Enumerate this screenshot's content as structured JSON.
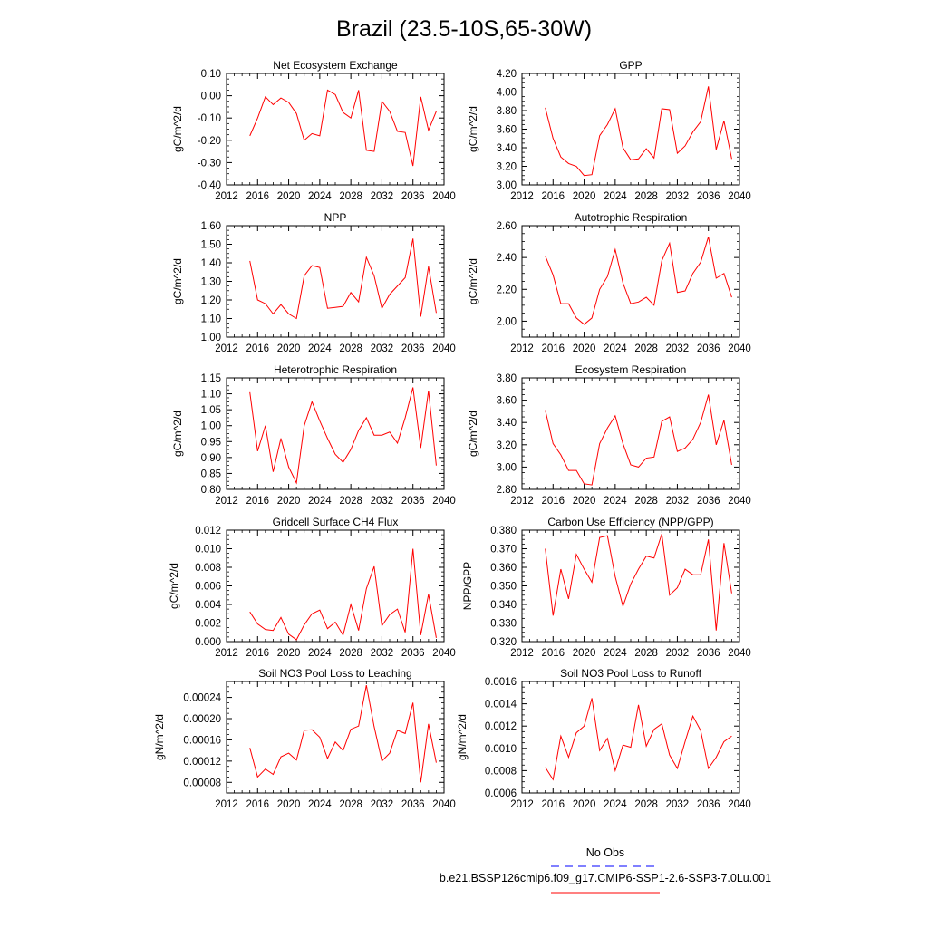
{
  "title": "Brazil (23.5-10S,65-30W)",
  "colors": {
    "model": "#ff0000",
    "obs": "#0000ff",
    "axis": "#000000"
  },
  "legend": {
    "obs_label": "No Obs",
    "model_label": "b.e21.BSSP126cmip6.f09_g17.CMIP6-SSP1-2.6-SSP3-7.0Lu.001"
  },
  "chart_data": [
    {
      "type": "line",
      "title": "Net Ecosystem Exchange",
      "ylabel": "gC/m^2/d",
      "xlim": [
        2012,
        2040
      ],
      "ylim": [
        -0.4,
        0.1
      ],
      "xticks": [
        2012,
        2016,
        2020,
        2024,
        2028,
        2032,
        2036,
        2040
      ],
      "xtick_labels": [
        "2012",
        "2016",
        "2020",
        "2024",
        "2028",
        "2032",
        "2036",
        "2040"
      ],
      "yticks": [
        -0.4,
        -0.3,
        -0.2,
        -0.1,
        0.0,
        0.1
      ],
      "ytick_labels": [
        "-0.40",
        "-0.30",
        "-0.20",
        "-0.10",
        "0.00",
        "0.10"
      ],
      "x": [
        2015,
        2016,
        2017,
        2018,
        2019,
        2020,
        2021,
        2022,
        2023,
        2024,
        2025,
        2026,
        2027,
        2028,
        2029,
        2030,
        2031,
        2032,
        2033,
        2034,
        2035,
        2036,
        2037,
        2038,
        2039
      ],
      "values": [
        -0.18,
        -0.1,
        -0.005,
        -0.04,
        -0.01,
        -0.03,
        -0.08,
        -0.2,
        -0.17,
        -0.18,
        0.025,
        0.005,
        -0.075,
        -0.1,
        0.025,
        -0.245,
        -0.25,
        -0.025,
        -0.07,
        -0.16,
        -0.165,
        -0.315,
        -0.005,
        -0.155,
        -0.07
      ]
    },
    {
      "type": "line",
      "title": "GPP",
      "ylabel": "gC/m^2/d",
      "xlim": [
        2012,
        2040
      ],
      "ylim": [
        3.0,
        4.2
      ],
      "xticks": [
        2012,
        2016,
        2020,
        2024,
        2028,
        2032,
        2036,
        2040
      ],
      "xtick_labels": [
        "2012",
        "2016",
        "2020",
        "2024",
        "2028",
        "2032",
        "2036",
        "2040"
      ],
      "yticks": [
        3.0,
        3.2,
        3.4,
        3.6,
        3.8,
        4.0,
        4.2
      ],
      "ytick_labels": [
        "3.00",
        "3.20",
        "3.40",
        "3.60",
        "3.80",
        "4.00",
        "4.20"
      ],
      "x": [
        2015,
        2016,
        2017,
        2018,
        2019,
        2020,
        2021,
        2022,
        2023,
        2024,
        2025,
        2026,
        2027,
        2028,
        2029,
        2030,
        2031,
        2032,
        2033,
        2034,
        2035,
        2036,
        2037,
        2038,
        2039
      ],
      "values": [
        3.83,
        3.5,
        3.3,
        3.23,
        3.2,
        3.1,
        3.11,
        3.53,
        3.65,
        3.82,
        3.4,
        3.27,
        3.28,
        3.39,
        3.29,
        3.82,
        3.81,
        3.34,
        3.42,
        3.57,
        3.68,
        4.06,
        3.38,
        3.69,
        3.28
      ]
    },
    {
      "type": "line",
      "title": "NPP",
      "ylabel": "gC/m^2/d",
      "xlim": [
        2012,
        2040
      ],
      "ylim": [
        1.0,
        1.6
      ],
      "xticks": [
        2012,
        2016,
        2020,
        2024,
        2028,
        2032,
        2036,
        2040
      ],
      "xtick_labels": [
        "2012",
        "2016",
        "2020",
        "2024",
        "2028",
        "2032",
        "2036",
        "2040"
      ],
      "yticks": [
        1.0,
        1.1,
        1.2,
        1.3,
        1.4,
        1.5,
        1.6
      ],
      "ytick_labels": [
        "1.00",
        "1.10",
        "1.20",
        "1.30",
        "1.40",
        "1.50",
        "1.60"
      ],
      "x": [
        2015,
        2016,
        2017,
        2018,
        2019,
        2020,
        2021,
        2022,
        2023,
        2024,
        2025,
        2026,
        2027,
        2028,
        2029,
        2030,
        2031,
        2032,
        2033,
        2034,
        2035,
        2036,
        2037,
        2038,
        2039
      ],
      "values": [
        1.41,
        1.2,
        1.18,
        1.125,
        1.175,
        1.125,
        1.1,
        1.33,
        1.385,
        1.375,
        1.155,
        1.16,
        1.165,
        1.24,
        1.19,
        1.43,
        1.33,
        1.155,
        1.23,
        1.275,
        1.32,
        1.53,
        1.11,
        1.38,
        1.13
      ]
    },
    {
      "type": "line",
      "title": "Autotrophic Respiration",
      "ylabel": "gC/m^2/d",
      "xlim": [
        2012,
        2040
      ],
      "ylim": [
        1.9,
        2.6
      ],
      "xticks": [
        2012,
        2016,
        2020,
        2024,
        2028,
        2032,
        2036,
        2040
      ],
      "xtick_labels": [
        "2012",
        "2016",
        "2020",
        "2024",
        "2028",
        "2032",
        "2036",
        "2040"
      ],
      "yticks": [
        2.0,
        2.2,
        2.4,
        2.6
      ],
      "ytick_labels": [
        "2.00",
        "2.20",
        "2.40",
        "2.60"
      ],
      "x": [
        2015,
        2016,
        2017,
        2018,
        2019,
        2020,
        2021,
        2022,
        2023,
        2024,
        2025,
        2026,
        2027,
        2028,
        2029,
        2030,
        2031,
        2032,
        2033,
        2034,
        2035,
        2036,
        2037,
        2038,
        2039
      ],
      "values": [
        2.41,
        2.29,
        2.11,
        2.11,
        2.02,
        1.98,
        2.02,
        2.2,
        2.28,
        2.45,
        2.24,
        2.11,
        2.12,
        2.15,
        2.1,
        2.38,
        2.49,
        2.18,
        2.19,
        2.3,
        2.37,
        2.53,
        2.27,
        2.3,
        2.15
      ]
    },
    {
      "type": "line",
      "title": "Heterotrophic Respiration",
      "ylabel": "gC/m^2/d",
      "xlim": [
        2012,
        2040
      ],
      "ylim": [
        0.8,
        1.15
      ],
      "xticks": [
        2012,
        2016,
        2020,
        2024,
        2028,
        2032,
        2036,
        2040
      ],
      "xtick_labels": [
        "2012",
        "2016",
        "2020",
        "2024",
        "2028",
        "2032",
        "2036",
        "2040"
      ],
      "yticks": [
        0.8,
        0.85,
        0.9,
        0.95,
        1.0,
        1.05,
        1.1,
        1.15
      ],
      "ytick_labels": [
        "0.80",
        "0.85",
        "0.90",
        "0.95",
        "1.00",
        "1.05",
        "1.10",
        "1.15"
      ],
      "x": [
        2015,
        2016,
        2017,
        2018,
        2019,
        2020,
        2021,
        2022,
        2023,
        2024,
        2025,
        2026,
        2027,
        2028,
        2029,
        2030,
        2031,
        2032,
        2033,
        2034,
        2035,
        2036,
        2037,
        2038,
        2039
      ],
      "values": [
        1.105,
        0.92,
        1.0,
        0.855,
        0.96,
        0.87,
        0.82,
        1.0,
        1.075,
        1.015,
        0.96,
        0.91,
        0.885,
        0.925,
        0.985,
        1.025,
        0.97,
        0.97,
        0.98,
        0.945,
        1.025,
        1.12,
        0.93,
        1.11,
        0.875
      ]
    },
    {
      "type": "line",
      "title": "Ecosystem Respiration",
      "ylabel": "gC/m^2/d",
      "xlim": [
        2012,
        2040
      ],
      "ylim": [
        2.8,
        3.8
      ],
      "xticks": [
        2012,
        2016,
        2020,
        2024,
        2028,
        2032,
        2036,
        2040
      ],
      "xtick_labels": [
        "2012",
        "2016",
        "2020",
        "2024",
        "2028",
        "2032",
        "2036",
        "2040"
      ],
      "yticks": [
        2.8,
        3.0,
        3.2,
        3.4,
        3.6,
        3.8
      ],
      "ytick_labels": [
        "2.80",
        "3.00",
        "3.20",
        "3.40",
        "3.60",
        "3.80"
      ],
      "x": [
        2015,
        2016,
        2017,
        2018,
        2019,
        2020,
        2021,
        2022,
        2023,
        2024,
        2025,
        2026,
        2027,
        2028,
        2029,
        2030,
        2031,
        2032,
        2033,
        2034,
        2035,
        2036,
        2037,
        2038,
        2039
      ],
      "values": [
        3.51,
        3.21,
        3.11,
        2.97,
        2.97,
        2.85,
        2.84,
        3.21,
        3.35,
        3.46,
        3.21,
        3.02,
        3.0,
        3.08,
        3.09,
        3.41,
        3.45,
        3.14,
        3.17,
        3.25,
        3.4,
        3.65,
        3.2,
        3.42,
        3.02
      ]
    },
    {
      "type": "line",
      "title": "Gridcell Surface CH4 Flux",
      "ylabel": "gC/m^2/d",
      "xlim": [
        2012,
        2040
      ],
      "ylim": [
        0.0,
        0.012
      ],
      "xticks": [
        2012,
        2016,
        2020,
        2024,
        2028,
        2032,
        2036,
        2040
      ],
      "xtick_labels": [
        "2012",
        "2016",
        "2020",
        "2024",
        "2028",
        "2032",
        "2036",
        "2040"
      ],
      "yticks": [
        0.0,
        0.002,
        0.004,
        0.006,
        0.008,
        0.01,
        0.012
      ],
      "ytick_labels": [
        "0.000",
        "0.002",
        "0.004",
        "0.006",
        "0.008",
        "0.010",
        "0.012"
      ],
      "x": [
        2015,
        2016,
        2017,
        2018,
        2019,
        2020,
        2021,
        2022,
        2023,
        2024,
        2025,
        2026,
        2027,
        2028,
        2029,
        2030,
        2031,
        2032,
        2033,
        2034,
        2035,
        2036,
        2037,
        2038,
        2039
      ],
      "values": [
        0.0032,
        0.0019,
        0.0013,
        0.0012,
        0.0026,
        0.0008,
        0.0002,
        0.0018,
        0.003,
        0.0034,
        0.0014,
        0.0021,
        0.0007,
        0.004,
        0.0012,
        0.0057,
        0.0081,
        0.0017,
        0.0029,
        0.0035,
        0.001,
        0.01,
        0.0007,
        0.0051,
        0.0004
      ]
    },
    {
      "type": "line",
      "title": "Carbon Use Efficiency (NPP/GPP)",
      "ylabel": "NPP/GPP",
      "xlim": [
        2012,
        2040
      ],
      "ylim": [
        0.32,
        0.38
      ],
      "xticks": [
        2012,
        2016,
        2020,
        2024,
        2028,
        2032,
        2036,
        2040
      ],
      "xtick_labels": [
        "2012",
        "2016",
        "2020",
        "2024",
        "2028",
        "2032",
        "2036",
        "2040"
      ],
      "yticks": [
        0.32,
        0.33,
        0.34,
        0.35,
        0.36,
        0.37,
        0.38
      ],
      "ytick_labels": [
        "0.320",
        "0.330",
        "0.340",
        "0.350",
        "0.360",
        "0.370",
        "0.380"
      ],
      "x": [
        2015,
        2016,
        2017,
        2018,
        2019,
        2020,
        2021,
        2022,
        2023,
        2024,
        2025,
        2026,
        2027,
        2028,
        2029,
        2030,
        2031,
        2032,
        2033,
        2034,
        2035,
        2036,
        2037,
        2038,
        2039
      ],
      "values": [
        0.37,
        0.334,
        0.359,
        0.343,
        0.367,
        0.359,
        0.352,
        0.376,
        0.377,
        0.355,
        0.339,
        0.351,
        0.359,
        0.366,
        0.365,
        0.378,
        0.345,
        0.349,
        0.359,
        0.356,
        0.356,
        0.375,
        0.326,
        0.373,
        0.346
      ]
    },
    {
      "type": "line",
      "title": "Soil NO3 Pool Loss to Leaching",
      "ylabel": "gN/m^2/d",
      "xlim": [
        2012,
        2040
      ],
      "ylim": [
        6e-05,
        0.00027
      ],
      "xticks": [
        2012,
        2016,
        2020,
        2024,
        2028,
        2032,
        2036,
        2040
      ],
      "xtick_labels": [
        "2012",
        "2016",
        "2020",
        "2024",
        "2028",
        "2032",
        "2036",
        "2040"
      ],
      "yticks": [
        8e-05,
        0.00012,
        0.00016,
        0.0002,
        0.00024
      ],
      "ytick_labels": [
        "0.00008",
        "0.00012",
        "0.00016",
        "0.00020",
        "0.00024"
      ],
      "x": [
        2015,
        2016,
        2017,
        2018,
        2019,
        2020,
        2021,
        2022,
        2023,
        2024,
        2025,
        2026,
        2027,
        2028,
        2029,
        2030,
        2031,
        2032,
        2033,
        2034,
        2035,
        2036,
        2037,
        2038,
        2039
      ],
      "values": [
        0.000145,
        9e-05,
        0.000105,
        9.5e-05,
        0.000128,
        0.000135,
        0.000122,
        0.000178,
        0.000179,
        0.000165,
        0.000125,
        0.000156,
        0.00014,
        0.00018,
        0.000186,
        0.000263,
        0.000185,
        0.00012,
        0.000135,
        0.000178,
        0.000172,
        0.00023,
        8e-05,
        0.00019,
        0.000117
      ]
    },
    {
      "type": "line",
      "title": "Soil NO3 Pool Loss to Runoff",
      "ylabel": "gN/m^2/d",
      "xlim": [
        2012,
        2040
      ],
      "ylim": [
        0.0006,
        0.0016
      ],
      "xticks": [
        2012,
        2016,
        2020,
        2024,
        2028,
        2032,
        2036,
        2040
      ],
      "xtick_labels": [
        "2012",
        "2016",
        "2020",
        "2024",
        "2028",
        "2032",
        "2036",
        "2040"
      ],
      "yticks": [
        0.0006,
        0.0008,
        0.001,
        0.0012,
        0.0014,
        0.0016
      ],
      "ytick_labels": [
        "0.0006",
        "0.0008",
        "0.0010",
        "0.0012",
        "0.0014",
        "0.0016"
      ],
      "x": [
        2015,
        2016,
        2017,
        2018,
        2019,
        2020,
        2021,
        2022,
        2023,
        2024,
        2025,
        2026,
        2027,
        2028,
        2029,
        2030,
        2031,
        2032,
        2033,
        2034,
        2035,
        2036,
        2037,
        2038,
        2039
      ],
      "values": [
        0.00083,
        0.00072,
        0.00111,
        0.00092,
        0.00114,
        0.0012,
        0.00145,
        0.00098,
        0.00109,
        0.0008,
        0.00103,
        0.00101,
        0.00139,
        0.00102,
        0.00117,
        0.00122,
        0.00094,
        0.00082,
        0.00106,
        0.00129,
        0.00116,
        0.00082,
        0.00092,
        0.00106,
        0.00111
      ]
    }
  ]
}
